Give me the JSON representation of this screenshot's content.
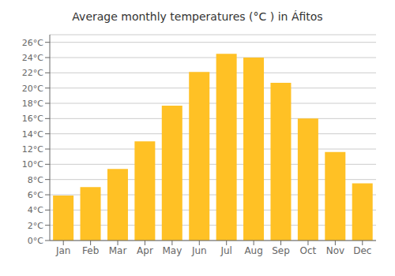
{
  "chart_data": {
    "type": "bar",
    "title": "Average monthly temperatures (°C ) in Áfitos",
    "categories": [
      "Jan",
      "Feb",
      "Mar",
      "Apr",
      "May",
      "Jun",
      "Jul",
      "Aug",
      "Sep",
      "Oct",
      "Nov",
      "Dec"
    ],
    "values": [
      5.9,
      7.0,
      9.4,
      13.0,
      17.7,
      22.1,
      24.5,
      24.0,
      20.7,
      16.0,
      11.6,
      7.5
    ],
    "color": "#FFC125",
    "ylim": [
      0,
      27
    ],
    "yticks": [
      {
        "value": 0,
        "label": "0°C"
      },
      {
        "value": 2,
        "label": "2°C"
      },
      {
        "value": 4,
        "label": "4°C"
      },
      {
        "value": 6,
        "label": "6°C"
      },
      {
        "value": 8,
        "label": "8°C"
      },
      {
        "value": 10,
        "label": "10°C"
      },
      {
        "value": 12,
        "label": "12°C"
      },
      {
        "value": 14,
        "label": "14°C"
      },
      {
        "value": 16,
        "label": "16°C"
      },
      {
        "value": 18,
        "label": "18°C"
      },
      {
        "value": 20,
        "label": "20°C"
      },
      {
        "value": 22,
        "label": "22°C"
      },
      {
        "value": 24,
        "label": "24°C"
      },
      {
        "value": 26,
        "label": "26°C"
      }
    ],
    "grid": true
  }
}
